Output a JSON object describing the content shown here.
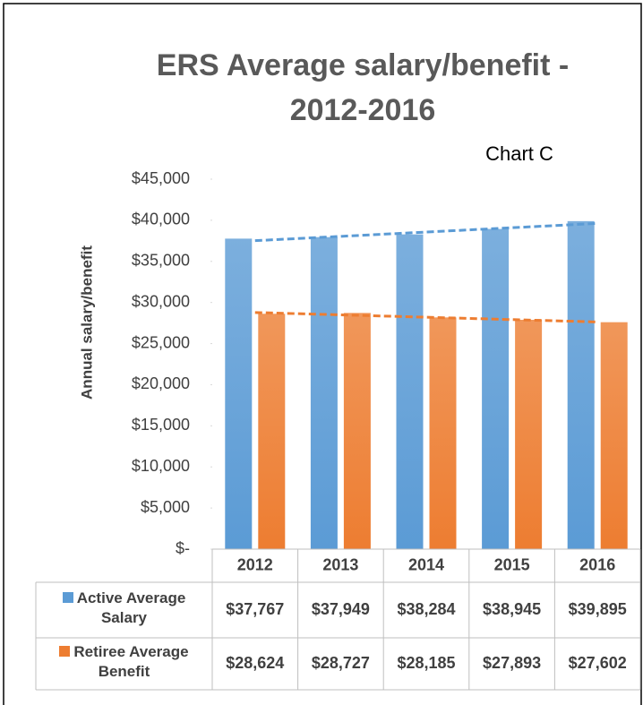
{
  "chart_data": {
    "type": "bar",
    "title": "ERS Average salary/benefit - 2012-2016",
    "annotation": "Chart C",
    "y_label": "Annual salary/benefit",
    "categories": [
      "2012",
      "2013",
      "2014",
      "2015",
      "2016"
    ],
    "series": [
      {
        "name": "Active Average Salary",
        "color": "#5b9bd5",
        "values": [
          37767,
          37949,
          38284,
          38945,
          39895
        ],
        "value_labels": [
          "$37,767",
          "$37,949",
          "$38,284",
          "$38,945",
          "$39,895"
        ]
      },
      {
        "name": "Retiree Average Benefit",
        "color": "#ed7d31",
        "values": [
          28624,
          28727,
          28185,
          27893,
          27602
        ],
        "value_labels": [
          "$28,624",
          "$28,727",
          "$28,185",
          "$27,893",
          "$27,602"
        ]
      }
    ],
    "ylim": [
      0,
      45000
    ],
    "yticks": [
      {
        "value": 0,
        "label": "$-"
      },
      {
        "value": 5000,
        "label": "$5,000"
      },
      {
        "value": 10000,
        "label": "$10,000"
      },
      {
        "value": 15000,
        "label": "$15,000"
      },
      {
        "value": 20000,
        "label": "$20,000"
      },
      {
        "value": 25000,
        "label": "$25,000"
      },
      {
        "value": 30000,
        "label": "$30,000"
      },
      {
        "value": 35000,
        "label": "$35,000"
      },
      {
        "value": 40000,
        "label": "$40,000"
      },
      {
        "value": 45000,
        "label": "$45,000"
      }
    ],
    "trendline": true,
    "data_table": true,
    "grid": false
  }
}
